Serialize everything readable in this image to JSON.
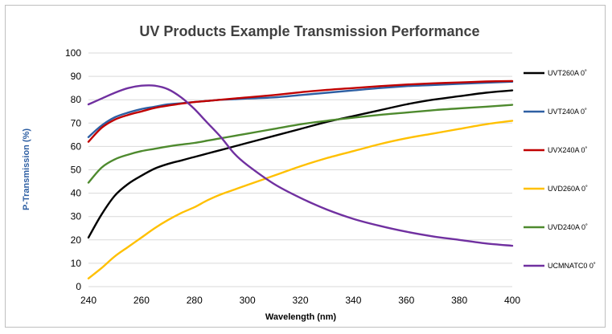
{
  "chart_data": {
    "type": "line",
    "title": "UV Products Example Transmission Performance",
    "xlabel": "Wavelength (nm)",
    "ylabel": "P-Transmission (%)",
    "xlim": [
      240,
      400
    ],
    "ylim": [
      0,
      100
    ],
    "x_ticks": [
      "240",
      "260",
      "280",
      "300",
      "320",
      "340",
      "360",
      "380",
      "400"
    ],
    "y_ticks": [
      "0",
      "10",
      "20",
      "30",
      "40",
      "50",
      "60",
      "70",
      "80",
      "90",
      "100"
    ],
    "grid": "horizontal",
    "legend_position": "right",
    "x": [
      240,
      245,
      250,
      255,
      260,
      265,
      270,
      275,
      280,
      285,
      290,
      295,
      300,
      310,
      320,
      330,
      340,
      350,
      360,
      370,
      380,
      390,
      400
    ],
    "series": [
      {
        "name": "UVT260A 0˚",
        "color": "#000000",
        "values": [
          21,
          31,
          39,
          44,
          47.5,
          50.5,
          52.5,
          54,
          55.5,
          57,
          58.5,
          60,
          61.5,
          64.5,
          67.5,
          70.5,
          73,
          75.5,
          78,
          80,
          81.5,
          83,
          84
        ]
      },
      {
        "name": "UVT240A 0˚",
        "color": "#2e5fa3",
        "values": [
          64,
          69,
          72.5,
          74.5,
          76,
          77,
          78,
          78.5,
          79,
          79.5,
          80,
          80.2,
          80.5,
          81,
          82,
          83,
          84,
          85,
          85.8,
          86.3,
          86.8,
          87.3,
          87.7
        ]
      },
      {
        "name": "UVX240A 0˚",
        "color": "#c00000",
        "values": [
          62,
          68,
          71.5,
          73.5,
          75,
          76.5,
          77.5,
          78.3,
          79,
          79.5,
          80,
          80.5,
          81,
          82,
          83.2,
          84.2,
          85,
          85.8,
          86.5,
          87,
          87.4,
          87.8,
          88
        ]
      },
      {
        "name": "UVD260A  0˚",
        "color": "#ffc000",
        "values": [
          3.5,
          8,
          13,
          17,
          21,
          25,
          28.5,
          31.5,
          34,
          37,
          39.5,
          41.5,
          43.5,
          47.5,
          51.5,
          55,
          58,
          61,
          63.5,
          65.5,
          67.5,
          69.5,
          71
        ]
      },
      {
        "name": "UVD240A 0˚",
        "color": "#4e8a2e",
        "values": [
          44.5,
          51,
          54.5,
          56.5,
          58,
          59,
          60,
          60.8,
          61.5,
          62.5,
          63.5,
          64.5,
          65.5,
          67.5,
          69.5,
          71,
          72.3,
          73.5,
          74.5,
          75.5,
          76.3,
          77,
          77.8
        ]
      },
      {
        "name": "UCMNATC0 0˚",
        "color": "#7030a0",
        "values": [
          78,
          80.5,
          83,
          85,
          86,
          86,
          84.5,
          81,
          76,
          70,
          64,
          57,
          52,
          44,
          38,
          33,
          29,
          26,
          23.5,
          21.5,
          20,
          18.5,
          17.5
        ]
      }
    ]
  }
}
